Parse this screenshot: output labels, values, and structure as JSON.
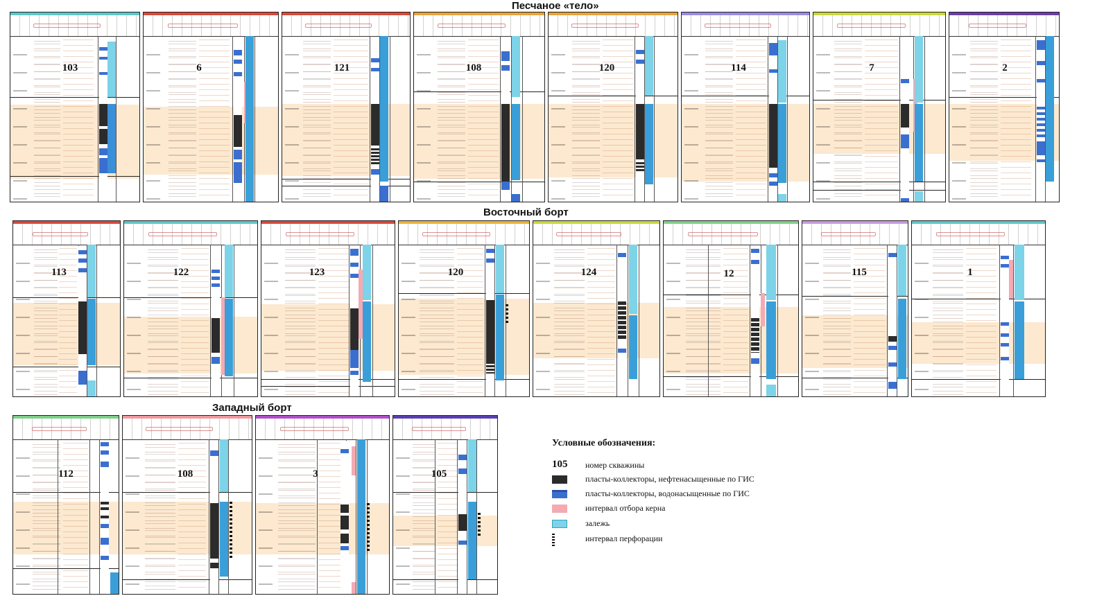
{
  "sections": {
    "body": "Песчаное «тело»",
    "east": "Восточный борт",
    "west": "Западный борт"
  },
  "wells": {
    "row1": [
      "103",
      "6",
      "121",
      "108",
      "120",
      "114",
      "7",
      "2"
    ],
    "row2": [
      "113",
      "122",
      "123",
      "120",
      "124",
      "12",
      "115",
      "1"
    ],
    "row3": [
      "112",
      "108",
      "3",
      "105"
    ]
  },
  "legend": {
    "title": "Условные обозначения:",
    "sample_number": "105",
    "items": [
      "номер скважины",
      "пласты-коллекторы, нефтенасыщенные по ГИС",
      "пласты-коллекторы, водонасыщенные по ГИС",
      "интервал отбора керна",
      "залежь",
      "интервал перфорации"
    ]
  },
  "colors": {
    "band": "#fbe5c8",
    "oil": "#2b2b2b",
    "water": "#3a6fd0",
    "core": "#f5aab3",
    "pool": "#7dd3e8",
    "row1_bars": [
      "#5fc6c6",
      "#d9493b",
      "#d9493b",
      "#e8a33a",
      "#e8a33a",
      "#9a8be0",
      "#c8d83a",
      "#6a3fa8"
    ],
    "row2_bars": [
      "#d9493b",
      "#5fc6c6",
      "#d9493b",
      "#e8b43a",
      "#c8d83a",
      "#7fd08a",
      "#c99ae0",
      "#5fc6c6"
    ],
    "row3_bars": [
      "#7fd08a",
      "#f09aa0",
      "#b050c8",
      "#5a3fb0"
    ]
  }
}
